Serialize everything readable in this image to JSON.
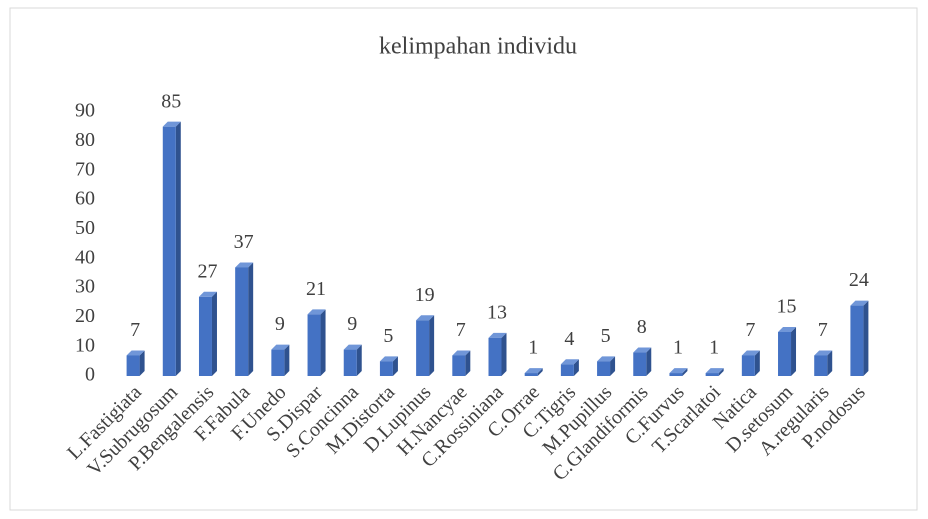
{
  "chart_data": {
    "type": "bar",
    "title": "kelimpahan individu",
    "categories": [
      "L.Fastigiata",
      "V.Subrugosum",
      "P.Bengalensis",
      "F.Fabula",
      "F.Unedo",
      "S.Dispar",
      "S.Concinna",
      "M.Distorta",
      "D.Lupinus",
      "H.Nancyae",
      "C.Rossiniana",
      "C.Orrae",
      "C.Tigris",
      "M.Pupillus",
      "C.Glandiformis",
      "C.Furvus",
      "T.Scarlatoi",
      "Natica",
      "D.setosum",
      "A.regularis",
      "P.nodosus"
    ],
    "values": [
      7,
      85,
      27,
      37,
      9,
      21,
      9,
      5,
      19,
      7,
      13,
      1,
      4,
      5,
      8,
      1,
      1,
      7,
      15,
      7,
      24
    ],
    "color": "#4472c4",
    "ylim": [
      0,
      90
    ],
    "yticks": [
      0,
      10,
      20,
      30,
      40,
      50,
      60,
      70,
      80,
      90
    ],
    "grid": false
  }
}
